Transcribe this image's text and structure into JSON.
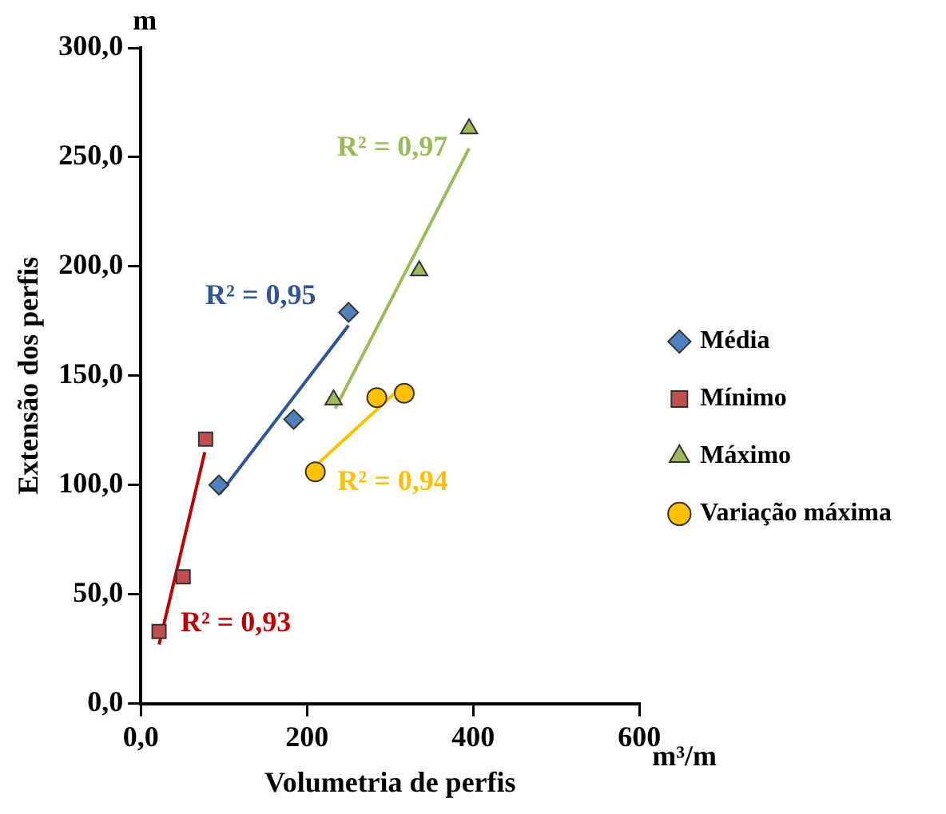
{
  "chart_data": {
    "type": "scatter",
    "xlabel": "Volumetria de perfis",
    "ylabel": "Extensão dos perfis",
    "xlim": [
      0,
      600
    ],
    "xticks": [
      {
        "value": 0,
        "label": "0,0"
      },
      200,
      400,
      600
    ],
    "ylim": [
      0,
      300
    ],
    "yticks": [
      {
        "value": 0,
        "label": "0,0"
      },
      {
        "value": 50,
        "label": "50,0"
      },
      {
        "value": 100,
        "label": "100,0"
      },
      {
        "value": 150,
        "label": "150,0"
      },
      {
        "value": 200,
        "label": "200,0"
      },
      {
        "value": 250,
        "label": "250,0"
      },
      {
        "value": 300,
        "label": "300,0"
      }
    ],
    "grid": false,
    "legend": "right",
    "series": [
      {
        "name": "Média",
        "color": "#4f81bd",
        "marker": "diamond",
        "x": [
          94,
          184,
          250
        ],
        "values": [
          100,
          130,
          179
        ]
      },
      {
        "name": "Mínimo",
        "color": "#c0504d",
        "marker": "square",
        "x": [
          22,
          51,
          78
        ],
        "values": [
          33,
          58,
          121
        ]
      },
      {
        "name": "Máximo",
        "color": "#9bbb59",
        "marker": "triangle",
        "x": [
          232,
          335,
          395
        ],
        "values": [
          139,
          198,
          263
        ]
      },
      {
        "name": "Variação máxima",
        "color": "#ffc000",
        "marker": "circle",
        "x": [
          210,
          284,
          317
        ],
        "values": [
          106,
          140,
          142
        ]
      },
      {
        "type": "line",
        "color": "#2f5597",
        "marker": "none",
        "x": [
          95,
          250
        ],
        "values": [
          96,
          173
        ]
      },
      {
        "type": "line",
        "color": "#c00000",
        "marker": "none",
        "x": [
          22,
          77
        ],
        "values": [
          27,
          115
        ]
      },
      {
        "type": "line",
        "color": "#9bbb59",
        "marker": "none",
        "x": [
          234,
          395
        ],
        "values": [
          135,
          254
        ]
      },
      {
        "type": "line",
        "color": "#ffc000",
        "marker": "none",
        "x": [
          211,
          317
        ],
        "values": [
          109,
          146
        ]
      }
    ],
    "annotations": [
      "m",
      "m³/m",
      "R² = 0,95",
      "R² = 0,93",
      "R² = 0,97",
      "R² = 0,94"
    ]
  }
}
